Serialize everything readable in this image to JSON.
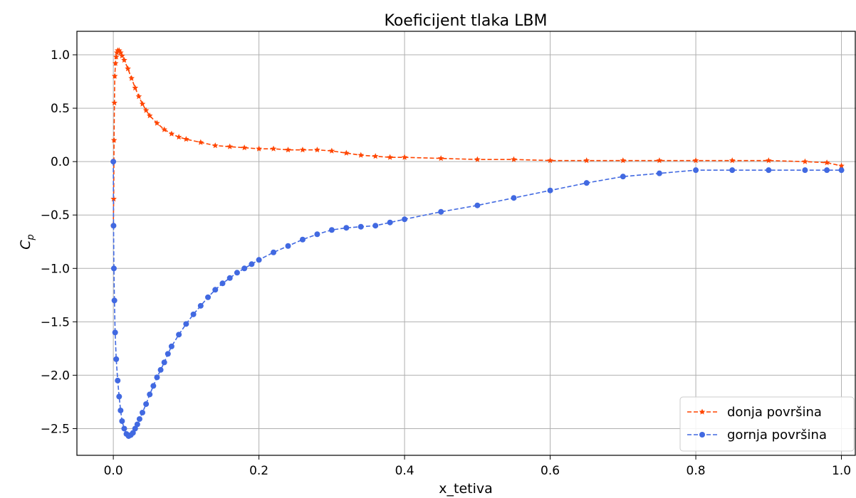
{
  "chart_data": {
    "type": "line",
    "title": "Koeficijent tlaka LBM",
    "xlabel": "x_tetiva",
    "ylabel": "C",
    "ylabel_subscript": "p",
    "xlim": [
      -0.05,
      1.02
    ],
    "ylim": [
      -2.75,
      1.22
    ],
    "xticks": [
      0.0,
      0.2,
      0.4,
      0.6,
      0.8,
      1.0
    ],
    "xtick_labels": [
      "0.0",
      "0.2",
      "0.4",
      "0.6",
      "0.8",
      "1.0"
    ],
    "yticks": [
      1.0,
      0.5,
      0.0,
      -0.5,
      -1.0,
      -1.5,
      -2.0,
      -2.5
    ],
    "ytick_labels": [
      "1.0",
      "0.5",
      "0.0",
      "−0.5",
      "−1.0",
      "−1.5",
      "−2.0",
      "−2.5"
    ],
    "grid": true,
    "legend_position": "lower-right",
    "series": [
      {
        "name": "donja površina",
        "color": "#ff4500",
        "marker": "star",
        "linestyle": "dashed",
        "x": [
          0.0,
          0.0005,
          0.001,
          0.0015,
          0.002,
          0.003,
          0.004,
          0.005,
          0.006,
          0.008,
          0.01,
          0.012,
          0.015,
          0.02,
          0.025,
          0.03,
          0.035,
          0.04,
          0.045,
          0.05,
          0.06,
          0.07,
          0.08,
          0.09,
          0.1,
          0.12,
          0.14,
          0.16,
          0.18,
          0.2,
          0.22,
          0.24,
          0.26,
          0.28,
          0.3,
          0.32,
          0.34,
          0.36,
          0.38,
          0.4,
          0.45,
          0.5,
          0.55,
          0.6,
          0.65,
          0.7,
          0.75,
          0.8,
          0.85,
          0.9,
          0.95,
          0.98,
          1.0
        ],
        "y": [
          -0.6,
          -0.35,
          0.2,
          0.55,
          0.8,
          0.92,
          0.98,
          1.02,
          1.04,
          1.04,
          1.02,
          0.99,
          0.95,
          0.87,
          0.78,
          0.69,
          0.61,
          0.54,
          0.48,
          0.43,
          0.36,
          0.3,
          0.26,
          0.23,
          0.21,
          0.18,
          0.15,
          0.14,
          0.13,
          0.12,
          0.12,
          0.11,
          0.11,
          0.11,
          0.1,
          0.08,
          0.06,
          0.05,
          0.04,
          0.04,
          0.03,
          0.02,
          0.02,
          0.01,
          0.01,
          0.01,
          0.01,
          0.01,
          0.01,
          0.01,
          0.0,
          -0.01,
          -0.04
        ]
      },
      {
        "name": "gornja površina",
        "color": "#4169e1",
        "marker": "circle",
        "linestyle": "dashed",
        "x": [
          0.0,
          0.0003,
          0.0008,
          0.0015,
          0.0025,
          0.004,
          0.006,
          0.008,
          0.01,
          0.012,
          0.015,
          0.018,
          0.021,
          0.024,
          0.027,
          0.03,
          0.033,
          0.036,
          0.04,
          0.045,
          0.05,
          0.055,
          0.06,
          0.065,
          0.07,
          0.075,
          0.08,
          0.09,
          0.1,
          0.11,
          0.12,
          0.13,
          0.14,
          0.15,
          0.16,
          0.17,
          0.18,
          0.19,
          0.2,
          0.22,
          0.24,
          0.26,
          0.28,
          0.3,
          0.32,
          0.34,
          0.36,
          0.38,
          0.4,
          0.45,
          0.5,
          0.55,
          0.6,
          0.65,
          0.7,
          0.75,
          0.8,
          0.85,
          0.9,
          0.95,
          0.98,
          1.0
        ],
        "y": [
          0.0,
          -0.6,
          -1.0,
          -1.3,
          -1.6,
          -1.85,
          -2.05,
          -2.2,
          -2.33,
          -2.43,
          -2.5,
          -2.55,
          -2.57,
          -2.56,
          -2.54,
          -2.5,
          -2.46,
          -2.41,
          -2.35,
          -2.27,
          -2.18,
          -2.1,
          -2.02,
          -1.95,
          -1.88,
          -1.8,
          -1.73,
          -1.62,
          -1.52,
          -1.43,
          -1.35,
          -1.27,
          -1.2,
          -1.14,
          -1.09,
          -1.04,
          -1.0,
          -0.96,
          -0.92,
          -0.85,
          -0.79,
          -0.73,
          -0.68,
          -0.64,
          -0.62,
          -0.61,
          -0.6,
          -0.57,
          -0.54,
          -0.47,
          -0.41,
          -0.34,
          -0.27,
          -0.2,
          -0.14,
          -0.11,
          -0.08,
          -0.08,
          -0.08,
          -0.08,
          -0.08,
          -0.08
        ]
      }
    ]
  }
}
